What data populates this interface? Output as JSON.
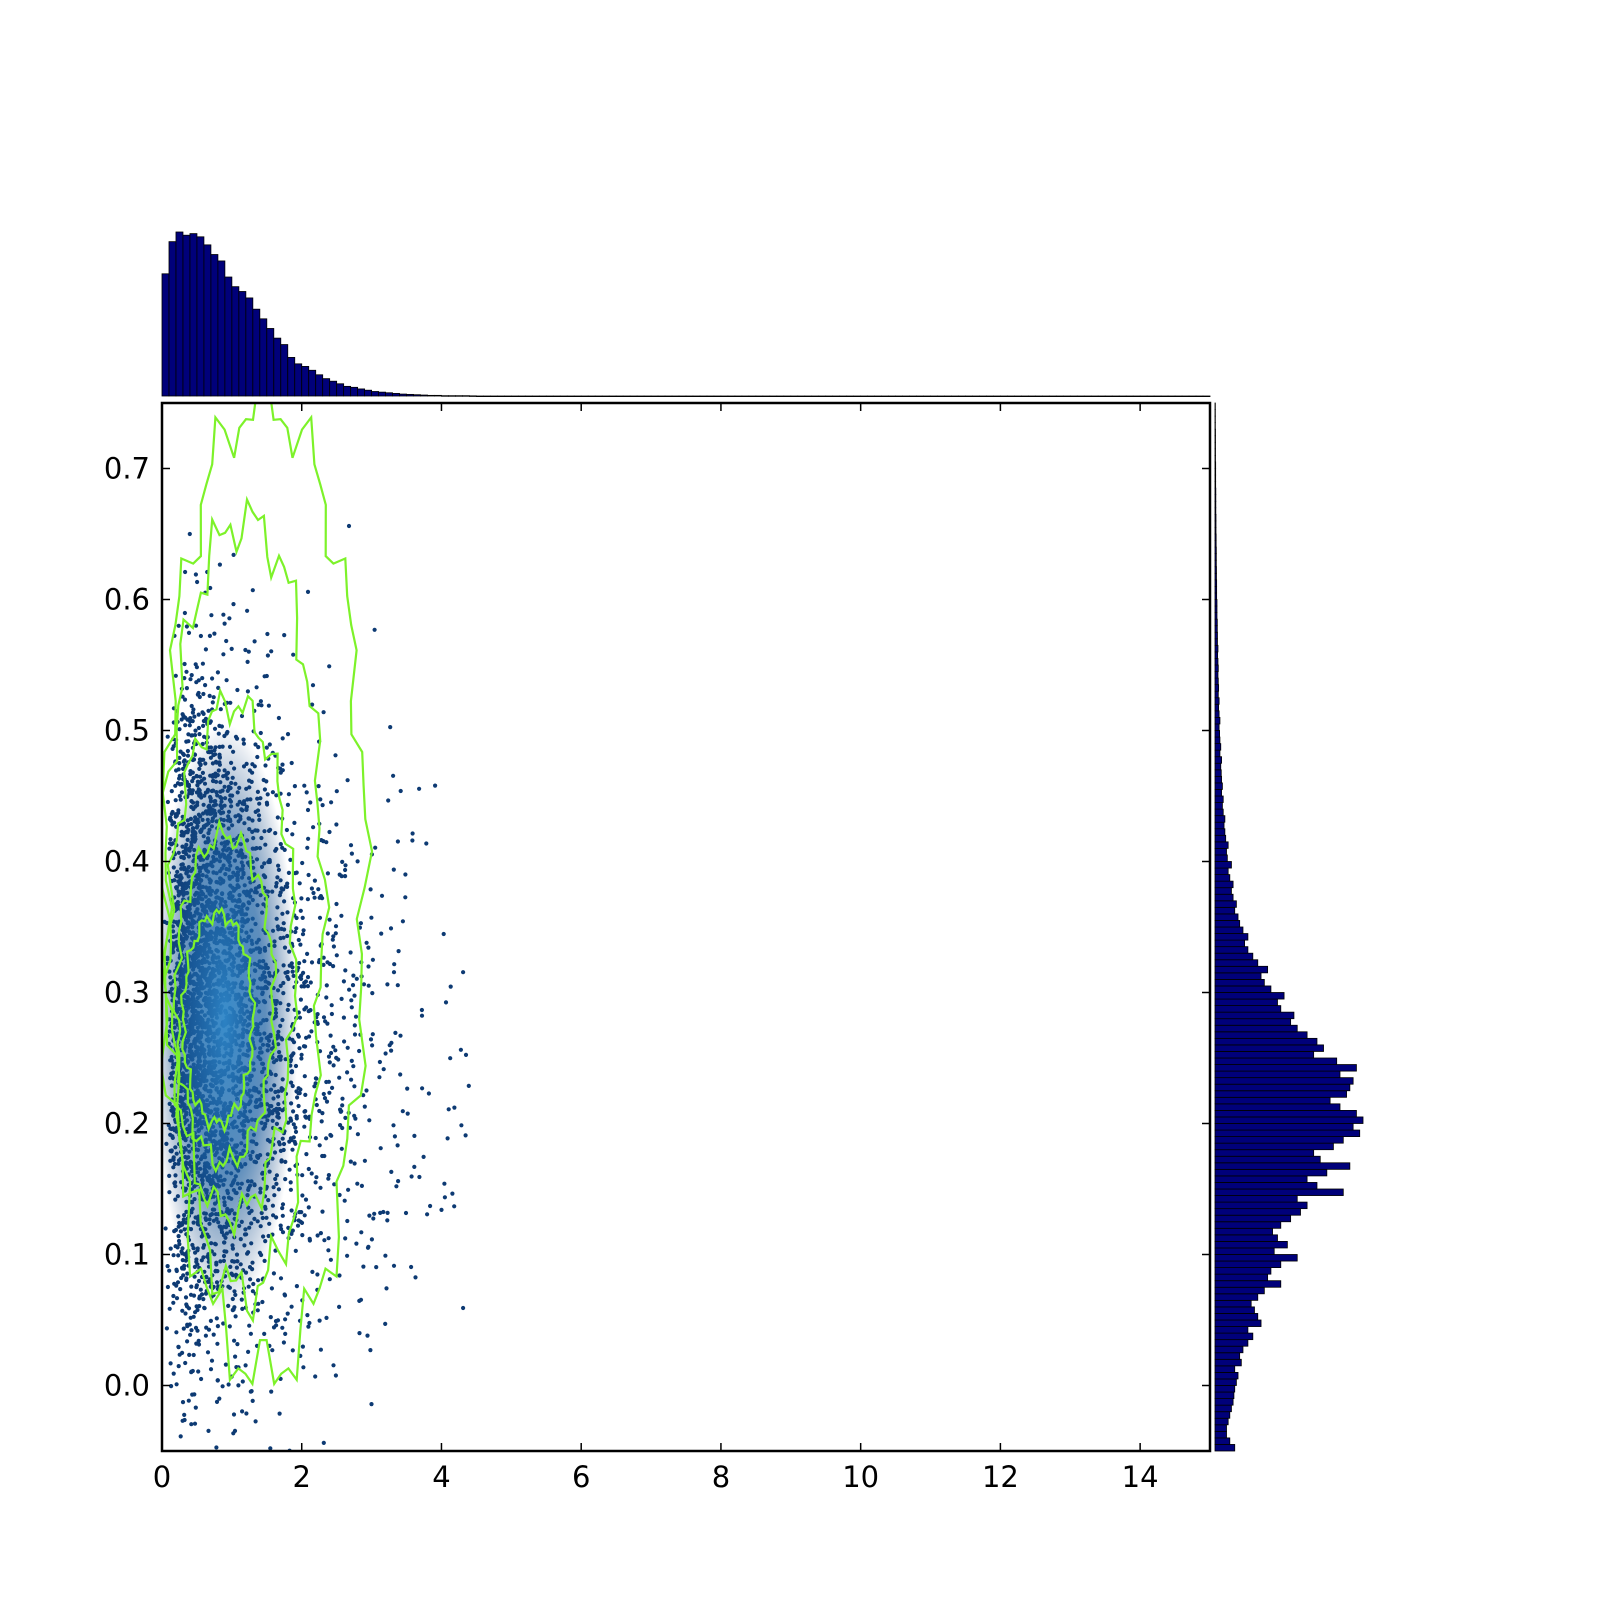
{
  "chart_data": {
    "type": "scatter",
    "title": "",
    "xlabel": "",
    "ylabel": "",
    "xlim": [
      0,
      15
    ],
    "ylim": [
      -0.05,
      0.75
    ],
    "x_ticks": [
      0,
      2,
      4,
      6,
      8,
      10,
      12,
      14
    ],
    "x_tick_labels": [
      "0",
      "2",
      "4",
      "6",
      "8",
      "10",
      "12",
      "14"
    ],
    "y_ticks": [
      0.0,
      0.1,
      0.2,
      0.3,
      0.4,
      0.5,
      0.6,
      0.7
    ],
    "y_tick_labels": [
      "0.0",
      "0.1",
      "0.2",
      "0.3",
      "0.4",
      "0.5",
      "0.6",
      "0.7"
    ],
    "grid": false,
    "colors": {
      "points": "#0d3a73",
      "density_core": "#2e86c8",
      "contours": "#7df22a",
      "hist_fill": "#00007a",
      "hist_edge": "#000000"
    },
    "scatter_distribution": {
      "x": {
        "min": 0,
        "mode": 0.5,
        "tail_to": 4.4
      },
      "y": {
        "center": 0.28,
        "spread": 0.12
      }
    },
    "density_peak": [
      0.9,
      0.28
    ],
    "contours": [
      {
        "level": 1,
        "x_range": [
          0.0,
          2.9
        ],
        "y_range": [
          0.01,
          0.75
        ]
      },
      {
        "level": 2,
        "x_range": [
          0.05,
          2.3
        ],
        "y_range": [
          0.07,
          0.66
        ]
      },
      {
        "level": 3,
        "x_range": [
          0.1,
          1.9
        ],
        "y_range": [
          0.13,
          0.52
        ]
      },
      {
        "level": 4,
        "x_range": [
          0.2,
          1.6
        ],
        "y_range": [
          0.17,
          0.42
        ]
      },
      {
        "level": 5,
        "x_range": [
          0.3,
          1.3
        ],
        "y_range": [
          0.2,
          0.36
        ]
      }
    ],
    "x_histogram": {
      "bin_width": 0.1,
      "bins_start": 0,
      "counts": [
        380,
        480,
        510,
        500,
        505,
        495,
        470,
        440,
        420,
        370,
        340,
        325,
        305,
        270,
        240,
        210,
        180,
        160,
        120,
        100,
        92,
        80,
        66,
        54,
        46,
        38,
        30,
        27,
        22,
        18,
        14,
        12,
        10,
        8,
        6,
        5,
        4,
        3,
        2,
        2,
        1,
        1,
        1,
        1,
        0.5
      ]
    },
    "y_histogram": {
      "bin_width": 0.005,
      "bins_start": -0.05,
      "counts": [
        120,
        90,
        70,
        70,
        80,
        90,
        100,
        110,
        115,
        120,
        130,
        140,
        120,
        160,
        150,
        170,
        200,
        230,
        200,
        280,
        260,
        240,
        220,
        260,
        300,
        400,
        320,
        340,
        400,
        500,
        360,
        440,
        380,
        350,
        400,
        460,
        520,
        560,
        500,
        780,
        620,
        560,
        680,
        820,
        640,
        600,
        720,
        780,
        880,
        840,
        900,
        860,
        760,
        700,
        800,
        820,
        840,
        760,
        860,
        740,
        600,
        660,
        620,
        560,
        500,
        460,
        480,
        400,
        380,
        420,
        340,
        300,
        280,
        320,
        260,
        230,
        200,
        180,
        200,
        170,
        150,
        140,
        120,
        130,
        110,
        100,
        110,
        90,
        80,
        100,
        75,
        70,
        80,
        65,
        60,
        55,
        60,
        50,
        45,
        50,
        40,
        45,
        40,
        38,
        35,
        40,
        30,
        35,
        30,
        28,
        25,
        30,
        25,
        22,
        25,
        20,
        22,
        20,
        18,
        20,
        18,
        16,
        18,
        15,
        15,
        14,
        14,
        12,
        12,
        12,
        10,
        10,
        10,
        9,
        9,
        8,
        8,
        8,
        7,
        7,
        6,
        6,
        6,
        5,
        5,
        5,
        5,
        4,
        4,
        4,
        4,
        3,
        3,
        3,
        3,
        3,
        2,
        2,
        2,
        2
      ]
    }
  }
}
